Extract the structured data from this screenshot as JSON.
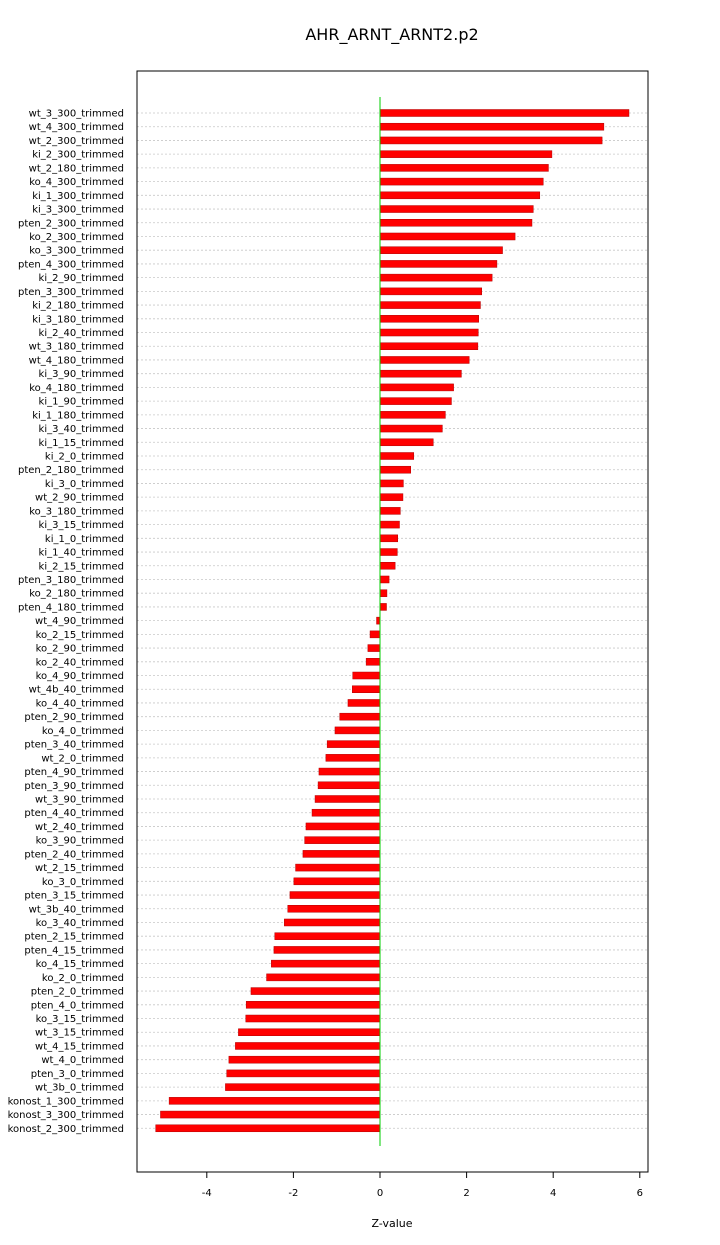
{
  "chart_data": {
    "type": "bar",
    "orientation": "horizontal",
    "title": "AHR_ARNT_ARNT2.p2",
    "xlabel": "Z-value",
    "ylabel": "",
    "xlim": [
      -5.6,
      6.2
    ],
    "xticks": [
      -4,
      -2,
      0,
      2,
      4,
      6
    ],
    "grid": true,
    "zero_line_color": "#00cc00",
    "bar_color": "#ff0000",
    "categories": [
      "wt_3_300_trimmed",
      "wt_4_300_trimmed",
      "wt_2_300_trimmed",
      "ki_2_300_trimmed",
      "wt_2_180_trimmed",
      "ko_4_300_trimmed",
      "ki_1_300_trimmed",
      "ki_3_300_trimmed",
      "pten_2_300_trimmed",
      "ko_2_300_trimmed",
      "ko_3_300_trimmed",
      "pten_4_300_trimmed",
      "ki_2_90_trimmed",
      "pten_3_300_trimmed",
      "ki_2_180_trimmed",
      "ki_3_180_trimmed",
      "ki_2_40_trimmed",
      "wt_3_180_trimmed",
      "wt_4_180_trimmed",
      "ki_3_90_trimmed",
      "ko_4_180_trimmed",
      "ki_1_90_trimmed",
      "ki_1_180_trimmed",
      "ki_3_40_trimmed",
      "ki_1_15_trimmed",
      "ki_2_0_trimmed",
      "pten_2_180_trimmed",
      "ki_3_0_trimmed",
      "wt_2_90_trimmed",
      "ko_3_180_trimmed",
      "ki_3_15_trimmed",
      "ki_1_0_trimmed",
      "ki_1_40_trimmed",
      "ki_2_15_trimmed",
      "pten_3_180_trimmed",
      "ko_2_180_trimmed",
      "pten_4_180_trimmed",
      "wt_4_90_trimmed",
      "ko_2_15_trimmed",
      "ko_2_90_trimmed",
      "ko_2_40_trimmed",
      "ko_4_90_trimmed",
      "wt_4b_40_trimmed",
      "ko_4_40_trimmed",
      "pten_2_90_trimmed",
      "ko_4_0_trimmed",
      "pten_3_40_trimmed",
      "wt_2_0_trimmed",
      "pten_4_90_trimmed",
      "pten_3_90_trimmed",
      "wt_3_90_trimmed",
      "pten_4_40_trimmed",
      "wt_2_40_trimmed",
      "ko_3_90_trimmed",
      "pten_2_40_trimmed",
      "wt_2_15_trimmed",
      "ko_3_0_trimmed",
      "pten_3_15_trimmed",
      "wt_3b_40_trimmed",
      "ko_3_40_trimmed",
      "pten_2_15_trimmed",
      "pten_4_15_trimmed",
      "ko_4_15_trimmed",
      "ko_2_0_trimmed",
      "pten_2_0_trimmed",
      "pten_4_0_trimmed",
      "ko_3_15_trimmed",
      "wt_3_15_trimmed",
      "wt_4_15_trimmed",
      "wt_4_0_trimmed",
      "pten_3_0_trimmed",
      "wt_3b_0_trimmed",
      "konost_1_300_trimmed",
      "konost_3_300_trimmed",
      "konost_2_300_trimmed"
    ],
    "values": [
      5.75,
      5.17,
      5.13,
      3.97,
      3.89,
      3.77,
      3.69,
      3.54,
      3.51,
      3.12,
      2.83,
      2.7,
      2.59,
      2.35,
      2.32,
      2.28,
      2.27,
      2.26,
      2.06,
      1.88,
      1.7,
      1.65,
      1.51,
      1.44,
      1.23,
      0.78,
      0.71,
      0.54,
      0.53,
      0.47,
      0.45,
      0.41,
      0.4,
      0.35,
      0.21,
      0.16,
      0.15,
      -0.08,
      -0.23,
      -0.28,
      -0.32,
      -0.63,
      -0.64,
      -0.74,
      -0.93,
      -1.04,
      -1.22,
      -1.25,
      -1.41,
      -1.43,
      -1.5,
      -1.57,
      -1.71,
      -1.74,
      -1.78,
      -1.95,
      -1.99,
      -2.08,
      -2.13,
      -2.21,
      -2.43,
      -2.45,
      -2.51,
      -2.62,
      -2.98,
      -3.09,
      -3.1,
      -3.27,
      -3.34,
      -3.49,
      -3.54,
      -3.57,
      -4.87,
      -5.07,
      -5.18
    ]
  }
}
